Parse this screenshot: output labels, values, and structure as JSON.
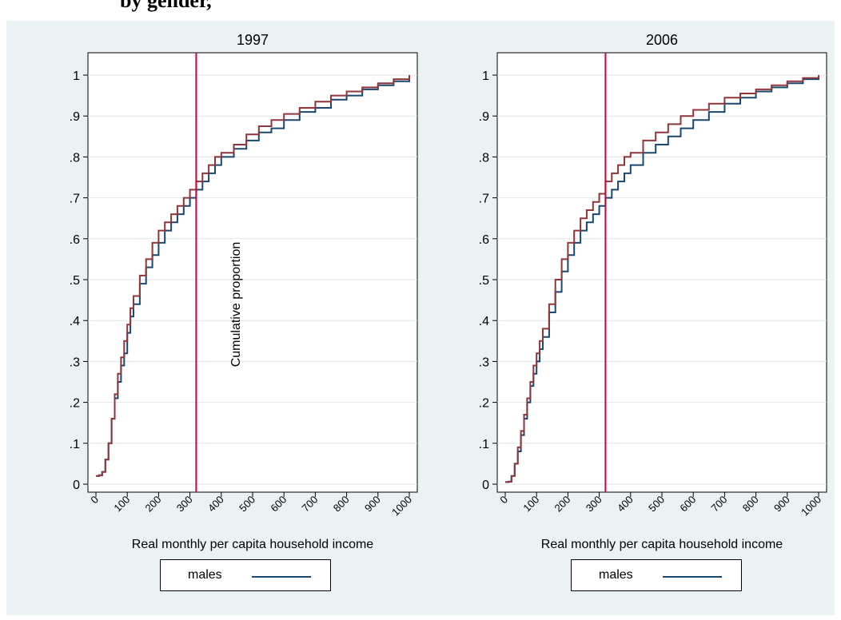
{
  "header": {
    "title": "by gender, "
  },
  "colors": {
    "background": "#eaf2f3",
    "males": "#1a476f",
    "females": "#90353b",
    "poverty_line": "#c10534",
    "grid": "#dfe6e8"
  },
  "chart_data": [
    {
      "type": "line",
      "title": "1997",
      "xlabel": "Real monthly per capita household income",
      "ylabel": "Cumulative proportion",
      "xlim": [
        0,
        1000
      ],
      "ylim": [
        0,
        1
      ],
      "x_ticks": [
        "0",
        "100",
        "200",
        "300",
        "400",
        "500",
        "600",
        "700",
        "800",
        "900",
        "1000"
      ],
      "y_ticks": [
        "0",
        ".1",
        ".2",
        ".3",
        ".4",
        ".5",
        ".6",
        ".7",
        ".8",
        ".9",
        "1"
      ],
      "grid": true,
      "vertical_line_x": 320,
      "legend": {
        "placement": "bottom",
        "entries": [
          "males"
        ]
      },
      "series": [
        {
          "name": "males",
          "x": [
            0,
            10,
            20,
            30,
            40,
            50,
            60,
            70,
            80,
            90,
            100,
            110,
            120,
            140,
            160,
            180,
            200,
            220,
            240,
            260,
            280,
            300,
            320,
            340,
            360,
            380,
            400,
            440,
            480,
            520,
            560,
            600,
            650,
            700,
            750,
            800,
            850,
            900,
            950,
            1000
          ],
          "y": [
            0.02,
            0.022,
            0.03,
            0.06,
            0.1,
            0.16,
            0.21,
            0.25,
            0.29,
            0.32,
            0.37,
            0.41,
            0.44,
            0.49,
            0.53,
            0.56,
            0.59,
            0.62,
            0.64,
            0.66,
            0.68,
            0.7,
            0.72,
            0.74,
            0.76,
            0.78,
            0.8,
            0.82,
            0.84,
            0.86,
            0.87,
            0.89,
            0.91,
            0.92,
            0.94,
            0.95,
            0.965,
            0.975,
            0.985,
            1.0
          ]
        },
        {
          "x": [
            0,
            10,
            20,
            30,
            40,
            50,
            60,
            70,
            80,
            90,
            100,
            110,
            120,
            140,
            160,
            180,
            200,
            220,
            240,
            260,
            280,
            300,
            320,
            340,
            360,
            380,
            400,
            440,
            480,
            520,
            560,
            600,
            650,
            700,
            750,
            800,
            850,
            900,
            950,
            1000
          ],
          "y": [
            0.02,
            0.022,
            0.03,
            0.06,
            0.1,
            0.16,
            0.22,
            0.27,
            0.31,
            0.35,
            0.39,
            0.43,
            0.46,
            0.51,
            0.55,
            0.59,
            0.62,
            0.64,
            0.66,
            0.68,
            0.7,
            0.72,
            0.74,
            0.76,
            0.78,
            0.8,
            0.81,
            0.83,
            0.855,
            0.875,
            0.89,
            0.905,
            0.92,
            0.935,
            0.95,
            0.96,
            0.97,
            0.98,
            0.99,
            1.0
          ]
        }
      ]
    },
    {
      "type": "line",
      "title": "2006",
      "xlabel": "Real monthly per capita household income",
      "xlim": [
        0,
        1000
      ],
      "ylim": [
        0,
        1
      ],
      "x_ticks": [
        "0",
        "100",
        "200",
        "300",
        "400",
        "500",
        "600",
        "700",
        "800",
        "900",
        "1000"
      ],
      "y_ticks": [
        "0",
        ".1",
        ".2",
        ".3",
        ".4",
        ".5",
        ".6",
        ".7",
        ".8",
        ".9",
        "1"
      ],
      "grid": true,
      "vertical_line_x": 320,
      "legend": {
        "placement": "bottom",
        "entries": [
          "males"
        ]
      },
      "series": [
        {
          "name": "males",
          "x": [
            0,
            10,
            20,
            30,
            40,
            50,
            60,
            70,
            80,
            90,
            100,
            110,
            120,
            140,
            160,
            180,
            200,
            220,
            240,
            260,
            280,
            300,
            320,
            340,
            360,
            380,
            400,
            440,
            480,
            520,
            560,
            600,
            650,
            700,
            750,
            800,
            850,
            900,
            950,
            1000
          ],
          "y": [
            0.005,
            0.006,
            0.02,
            0.05,
            0.08,
            0.12,
            0.16,
            0.2,
            0.24,
            0.27,
            0.3,
            0.33,
            0.36,
            0.42,
            0.47,
            0.52,
            0.56,
            0.59,
            0.62,
            0.64,
            0.66,
            0.68,
            0.7,
            0.72,
            0.74,
            0.76,
            0.78,
            0.81,
            0.83,
            0.85,
            0.87,
            0.89,
            0.91,
            0.93,
            0.945,
            0.96,
            0.97,
            0.98,
            0.99,
            1.0
          ]
        },
        {
          "x": [
            0,
            10,
            20,
            30,
            40,
            50,
            60,
            70,
            80,
            90,
            100,
            110,
            120,
            140,
            160,
            180,
            200,
            220,
            240,
            260,
            280,
            300,
            320,
            340,
            360,
            380,
            400,
            440,
            480,
            520,
            560,
            600,
            650,
            700,
            750,
            800,
            850,
            900,
            950,
            1000
          ],
          "y": [
            0.005,
            0.006,
            0.02,
            0.05,
            0.09,
            0.13,
            0.17,
            0.21,
            0.25,
            0.29,
            0.32,
            0.35,
            0.38,
            0.44,
            0.5,
            0.55,
            0.59,
            0.62,
            0.65,
            0.67,
            0.69,
            0.71,
            0.74,
            0.76,
            0.78,
            0.8,
            0.81,
            0.84,
            0.86,
            0.88,
            0.9,
            0.915,
            0.93,
            0.945,
            0.955,
            0.965,
            0.975,
            0.985,
            0.993,
            1.0
          ]
        }
      ]
    }
  ]
}
